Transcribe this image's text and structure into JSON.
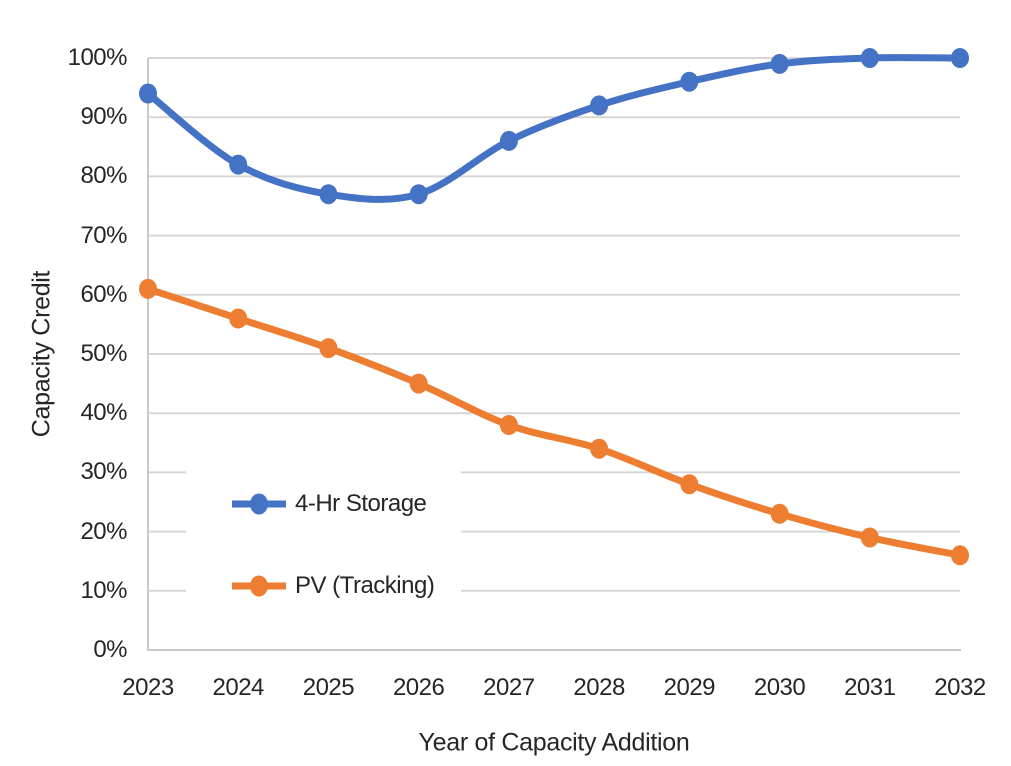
{
  "chart_data": {
    "type": "line",
    "title": "",
    "xlabel": "Year of Capacity Addition",
    "ylabel": "Capacity Credit",
    "categories": [
      "2023",
      "2024",
      "2025",
      "2026",
      "2027",
      "2028",
      "2029",
      "2030",
      "2031",
      "2032"
    ],
    "series": [
      {
        "name": "4-Hr Storage",
        "color": "#4472C4",
        "values": [
          94,
          82,
          77,
          77,
          86,
          92,
          96,
          99,
          100,
          100
        ]
      },
      {
        "name": "PV (Tracking)",
        "color": "#ED7D31",
        "values": [
          61,
          56,
          51,
          45,
          38,
          34,
          28,
          23,
          19,
          16
        ]
      }
    ],
    "ylim": [
      0,
      100
    ],
    "y_ticks": [
      0,
      10,
      20,
      30,
      40,
      50,
      60,
      70,
      80,
      90,
      100
    ],
    "y_tick_suffix": "%",
    "grid": "horizontal",
    "legend_position": "inside-lower-left",
    "smoothed": true
  },
  "colors": {
    "background": "#FFFFFF",
    "gridline": "#D6D6D6",
    "axis": "#C9C9C9",
    "text": "#262626",
    "storage_blue": "#4472C4",
    "pv_orange": "#ED7D31"
  }
}
